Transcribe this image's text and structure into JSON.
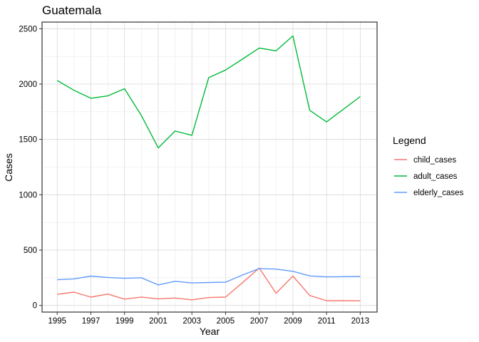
{
  "chart_data": {
    "type": "line",
    "title": "Guatemala",
    "xlabel": "Year",
    "ylabel": "Cases",
    "xlim": [
      1994.1,
      2014.0
    ],
    "ylim": [
      -60,
      2560
    ],
    "x_ticks": [
      1995,
      1997,
      1999,
      2001,
      2003,
      2005,
      2007,
      2009,
      2011,
      2013
    ],
    "y_ticks": [
      0,
      500,
      1000,
      1500,
      2000,
      2500
    ],
    "grid": true,
    "legend": {
      "title": "Legend",
      "position": "right"
    },
    "x": [
      1995,
      1996,
      1997,
      1998,
      1999,
      2000,
      2001,
      2002,
      2003,
      2004,
      2005,
      2006,
      2007,
      2008,
      2009,
      2010,
      2011,
      2012,
      2013
    ],
    "series": [
      {
        "name": "child_cases",
        "color": "#F8766D",
        "values": [
          100,
          120,
          75,
          103,
          57,
          76,
          60,
          67,
          51,
          71,
          75,
          205,
          338,
          110,
          265,
          90,
          43,
          43,
          42
        ]
      },
      {
        "name": "adult_cases",
        "color": "#00BA38",
        "values": [
          2032,
          1943,
          1872,
          1893,
          1958,
          1716,
          1423,
          1576,
          1537,
          2058,
          2127,
          2225,
          2326,
          2300,
          2435,
          1763,
          1658,
          1773,
          1887
        ]
      },
      {
        "name": "elderly_cases",
        "color": "#619CFF",
        "values": [
          232,
          240,
          265,
          253,
          245,
          250,
          185,
          218,
          203,
          207,
          210,
          275,
          333,
          328,
          308,
          267,
          258,
          260,
          262
        ]
      }
    ]
  }
}
